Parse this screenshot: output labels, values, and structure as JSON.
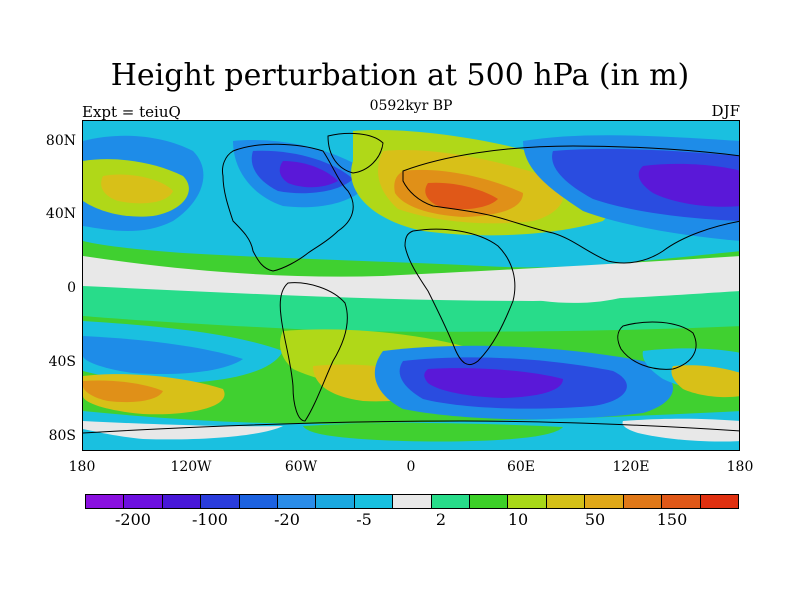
{
  "title": "Height perturbation at 500 hPa (in m)",
  "subtitle": "0592kyr BP",
  "left_label": "Expt = teiuQ",
  "right_label": "DJF",
  "lat_ticks": [
    "80N",
    "40N",
    "0",
    "40S",
    "80S"
  ],
  "lon_ticks": [
    "180",
    "120W",
    "60W",
    "0",
    "60E",
    "120E",
    "180"
  ],
  "colorbar": {
    "colors": [
      "#8a10e0",
      "#6d10e0",
      "#4818d8",
      "#2a3cdc",
      "#1c62e0",
      "#2a8ce8",
      "#1aa8e0",
      "#18c0e0",
      "#e8e8e8",
      "#28dc8a",
      "#3cd028",
      "#a8d818",
      "#d4c018",
      "#e0a818",
      "#e07818",
      "#e05818",
      "#e03010"
    ],
    "labels": [
      "-200",
      "-100",
      "-20",
      "-5",
      "2",
      "10",
      "50",
      "150"
    ]
  },
  "field_palette": {
    "very_low": "#5a18d8",
    "low": "#2a4ce0",
    "mid_low": "#1e8ce8",
    "slightly_low": "#1ac0e0",
    "neutral": "#e8e8e8",
    "slightly_high": "#28dc8a",
    "mid_high": "#40d030",
    "high": "#b0d818",
    "higher": "#d8c018",
    "very_high": "#e09018",
    "extreme": "#e05818"
  }
}
